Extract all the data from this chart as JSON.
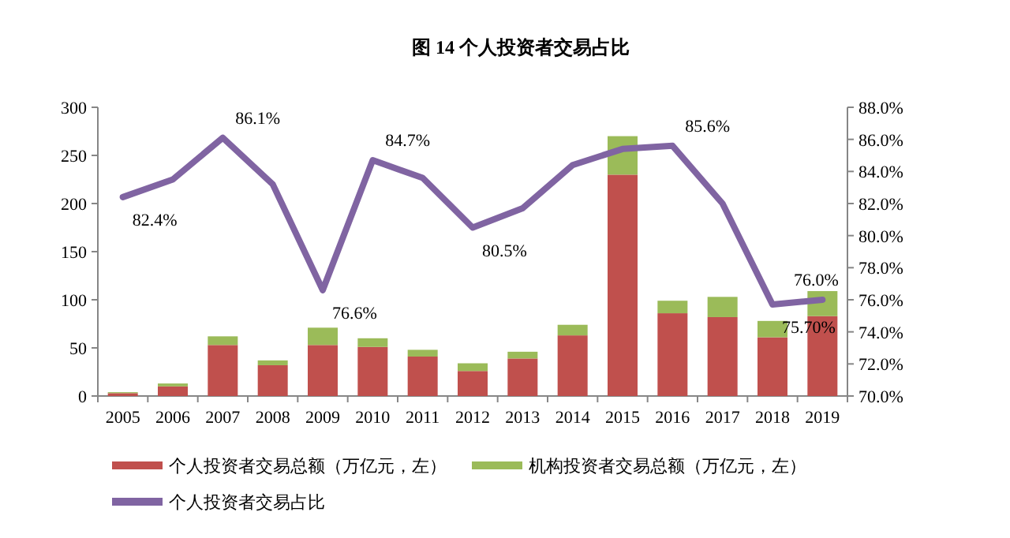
{
  "chart_data": {
    "type": "bar",
    "title": "图 14 个人投资者交易占比",
    "stacked": true,
    "categories": [
      "2005",
      "2006",
      "2007",
      "2008",
      "2009",
      "2010",
      "2011",
      "2012",
      "2013",
      "2014",
      "2015",
      "2016",
      "2017",
      "2018",
      "2019"
    ],
    "series": [
      {
        "name": "个人投资者交易总额（万亿元，左）",
        "color": "#c0504d",
        "values": [
          3,
          10,
          53,
          32,
          53,
          51,
          41,
          26,
          39,
          63,
          230,
          86,
          82,
          61,
          83
        ]
      },
      {
        "name": "机构投资者交易总额（万亿元，左）",
        "color": "#9bbb59",
        "values": [
          1,
          3,
          9,
          5,
          18,
          9,
          7,
          8,
          7,
          11,
          40,
          13,
          21,
          17,
          26
        ]
      },
      {
        "name": "个人投资者交易占比",
        "type": "line",
        "axis": "y2",
        "color": "#8064a2",
        "values": [
          82.4,
          83.5,
          86.1,
          83.2,
          76.6,
          84.7,
          83.6,
          80.5,
          81.7,
          84.4,
          85.4,
          85.6,
          82.0,
          75.7,
          76.0
        ],
        "value_labels": [
          "82.4%",
          null,
          "86.1%",
          null,
          "76.6%",
          "84.7%",
          null,
          "80.5%",
          null,
          null,
          null,
          "85.6%",
          null,
          "75.70%",
          "76.0%"
        ]
      }
    ],
    "ylim": [
      0,
      300
    ],
    "yticks": [
      0,
      50,
      100,
      150,
      200,
      250,
      300
    ],
    "y2lim": [
      70,
      88
    ],
    "y2ticks": [
      {
        "value": 70,
        "label": "70.0%"
      },
      {
        "value": 72,
        "label": "72.0%"
      },
      {
        "value": 74,
        "label": "74.0%"
      },
      {
        "value": 76,
        "label": "76.0%"
      },
      {
        "value": 78,
        "label": "78.0%"
      },
      {
        "value": 80,
        "label": "80.0%"
      },
      {
        "value": 82,
        "label": "82.0%"
      },
      {
        "value": 84,
        "label": "84.0%"
      },
      {
        "value": 86,
        "label": "86.0%"
      },
      {
        "value": 88,
        "label": "88.0%"
      }
    ],
    "legend": "bottom",
    "grid": false
  }
}
